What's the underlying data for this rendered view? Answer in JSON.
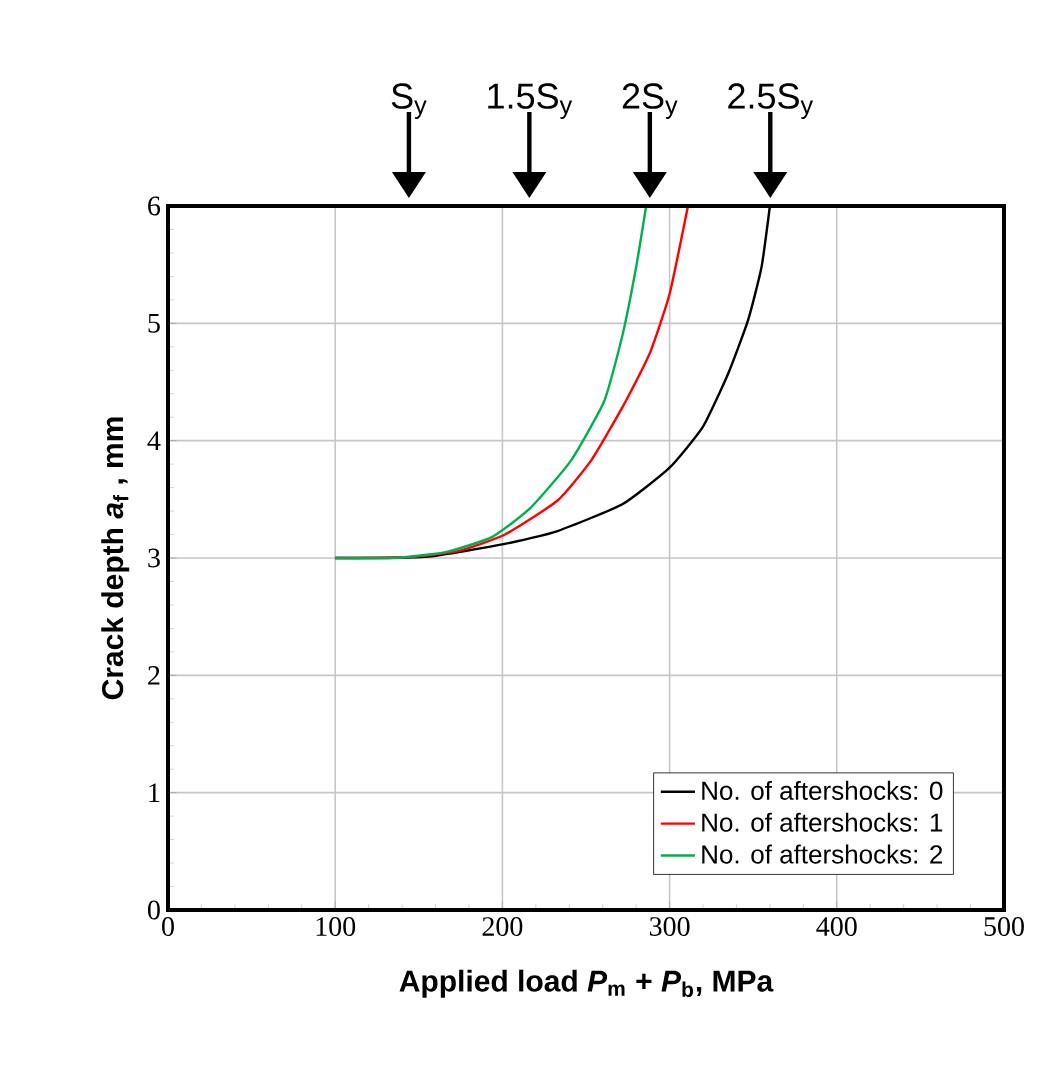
{
  "chart_data": {
    "type": "line",
    "xlabel": "Applied load *P*$_{m}$ + *P*$_{b}$, MPa",
    "ylabel": "Crack depth *a*$_{f}$ , mm",
    "xlim": [
      0,
      500
    ],
    "ylim": [
      0,
      6
    ],
    "xticks": [
      0,
      100,
      200,
      300,
      400,
      500
    ],
    "yticks": [
      0,
      1,
      2,
      3,
      4,
      5,
      6
    ],
    "grid": true,
    "legend": "bottom right",
    "marker": "none",
    "line_style": "solid",
    "x2lim": [
      0,
      3.47
    ],
    "x2ticks": [
      {
        "value": 1,
        "label": "S$_{y}$"
      },
      {
        "value": 1.5,
        "label": "1.5S$_{y}$"
      },
      {
        "value": 2,
        "label": "2S$_{y}$"
      },
      {
        "value": 2.5,
        "label": "2.5S$_{y}$"
      }
    ],
    "series": [
      {
        "name": "No. of aftershocks: 0",
        "color": "#000000",
        "x": [
          100,
          154,
          201.5,
          233,
          272,
          300,
          320,
          335,
          347,
          355,
          360
        ],
        "values": [
          3,
          3.01,
          3.12,
          3.23,
          3.46,
          3.77,
          4.12,
          4.57,
          5.03,
          5.48,
          6
        ]
      },
      {
        "name": "No. of aftershocks: 1",
        "color": "#ff0000",
        "x": [
          100,
          146,
          174,
          201.5,
          233,
          253,
          272,
          288,
          300,
          311
        ],
        "values": [
          3,
          3.01,
          3.06,
          3.2,
          3.49,
          3.83,
          4.29,
          4.74,
          5.25,
          6
        ]
      },
      {
        "name": "No. of aftershocks: 2",
        "color": "#00b050",
        "x": [
          100,
          135,
          166,
          194,
          217,
          241,
          261,
          272,
          280,
          286
        ],
        "values": [
          3,
          3,
          3.05,
          3.18,
          3.43,
          3.83,
          4.34,
          4.91,
          5.48,
          6
        ]
      }
    ]
  }
}
